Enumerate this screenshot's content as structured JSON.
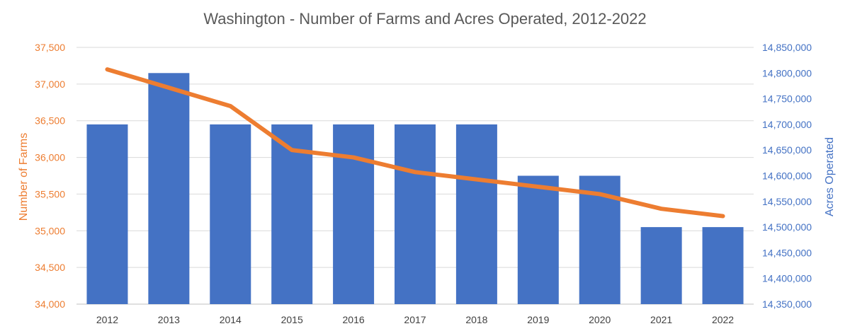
{
  "chart_data": {
    "type": "bar",
    "title": "Washington - Number of Farms and Acres Operated, 2012-2022",
    "categories": [
      "2012",
      "2013",
      "2014",
      "2015",
      "2016",
      "2017",
      "2018",
      "2019",
      "2020",
      "2021",
      "2022"
    ],
    "series": [
      {
        "name": "Acres Operated",
        "type": "bar",
        "axis": "right",
        "color": "#4472C4",
        "values": [
          14700000,
          14800000,
          14700000,
          14700000,
          14700000,
          14700000,
          14700000,
          14600000,
          14600000,
          14500000,
          14500000
        ]
      },
      {
        "name": "Number of Farms",
        "type": "line",
        "axis": "left",
        "color": "#ED7D31",
        "values": [
          37200,
          36950,
          36700,
          36100,
          36000,
          35800,
          35700,
          35600,
          35500,
          35300,
          35200
        ]
      }
    ],
    "ylabel_left": "Number of Farms",
    "ylabel_right": "Acres Operated",
    "ylim_left": [
      34000,
      37500
    ],
    "ylim_right": [
      14350000,
      14850000
    ],
    "yticks_left": [
      "34,000",
      "34,500",
      "35,000",
      "35,500",
      "36,000",
      "36,500",
      "37,000",
      "37,500"
    ],
    "yticks_right": [
      "14,350,000",
      "14,400,000",
      "14,450,000",
      "14,500,000",
      "14,550,000",
      "14,600,000",
      "14,650,000",
      "14,700,000",
      "14,750,000",
      "14,800,000",
      "14,850,000"
    ],
    "grid": true,
    "left_axis_color": "#ED7D31",
    "right_axis_color": "#4472C4"
  }
}
